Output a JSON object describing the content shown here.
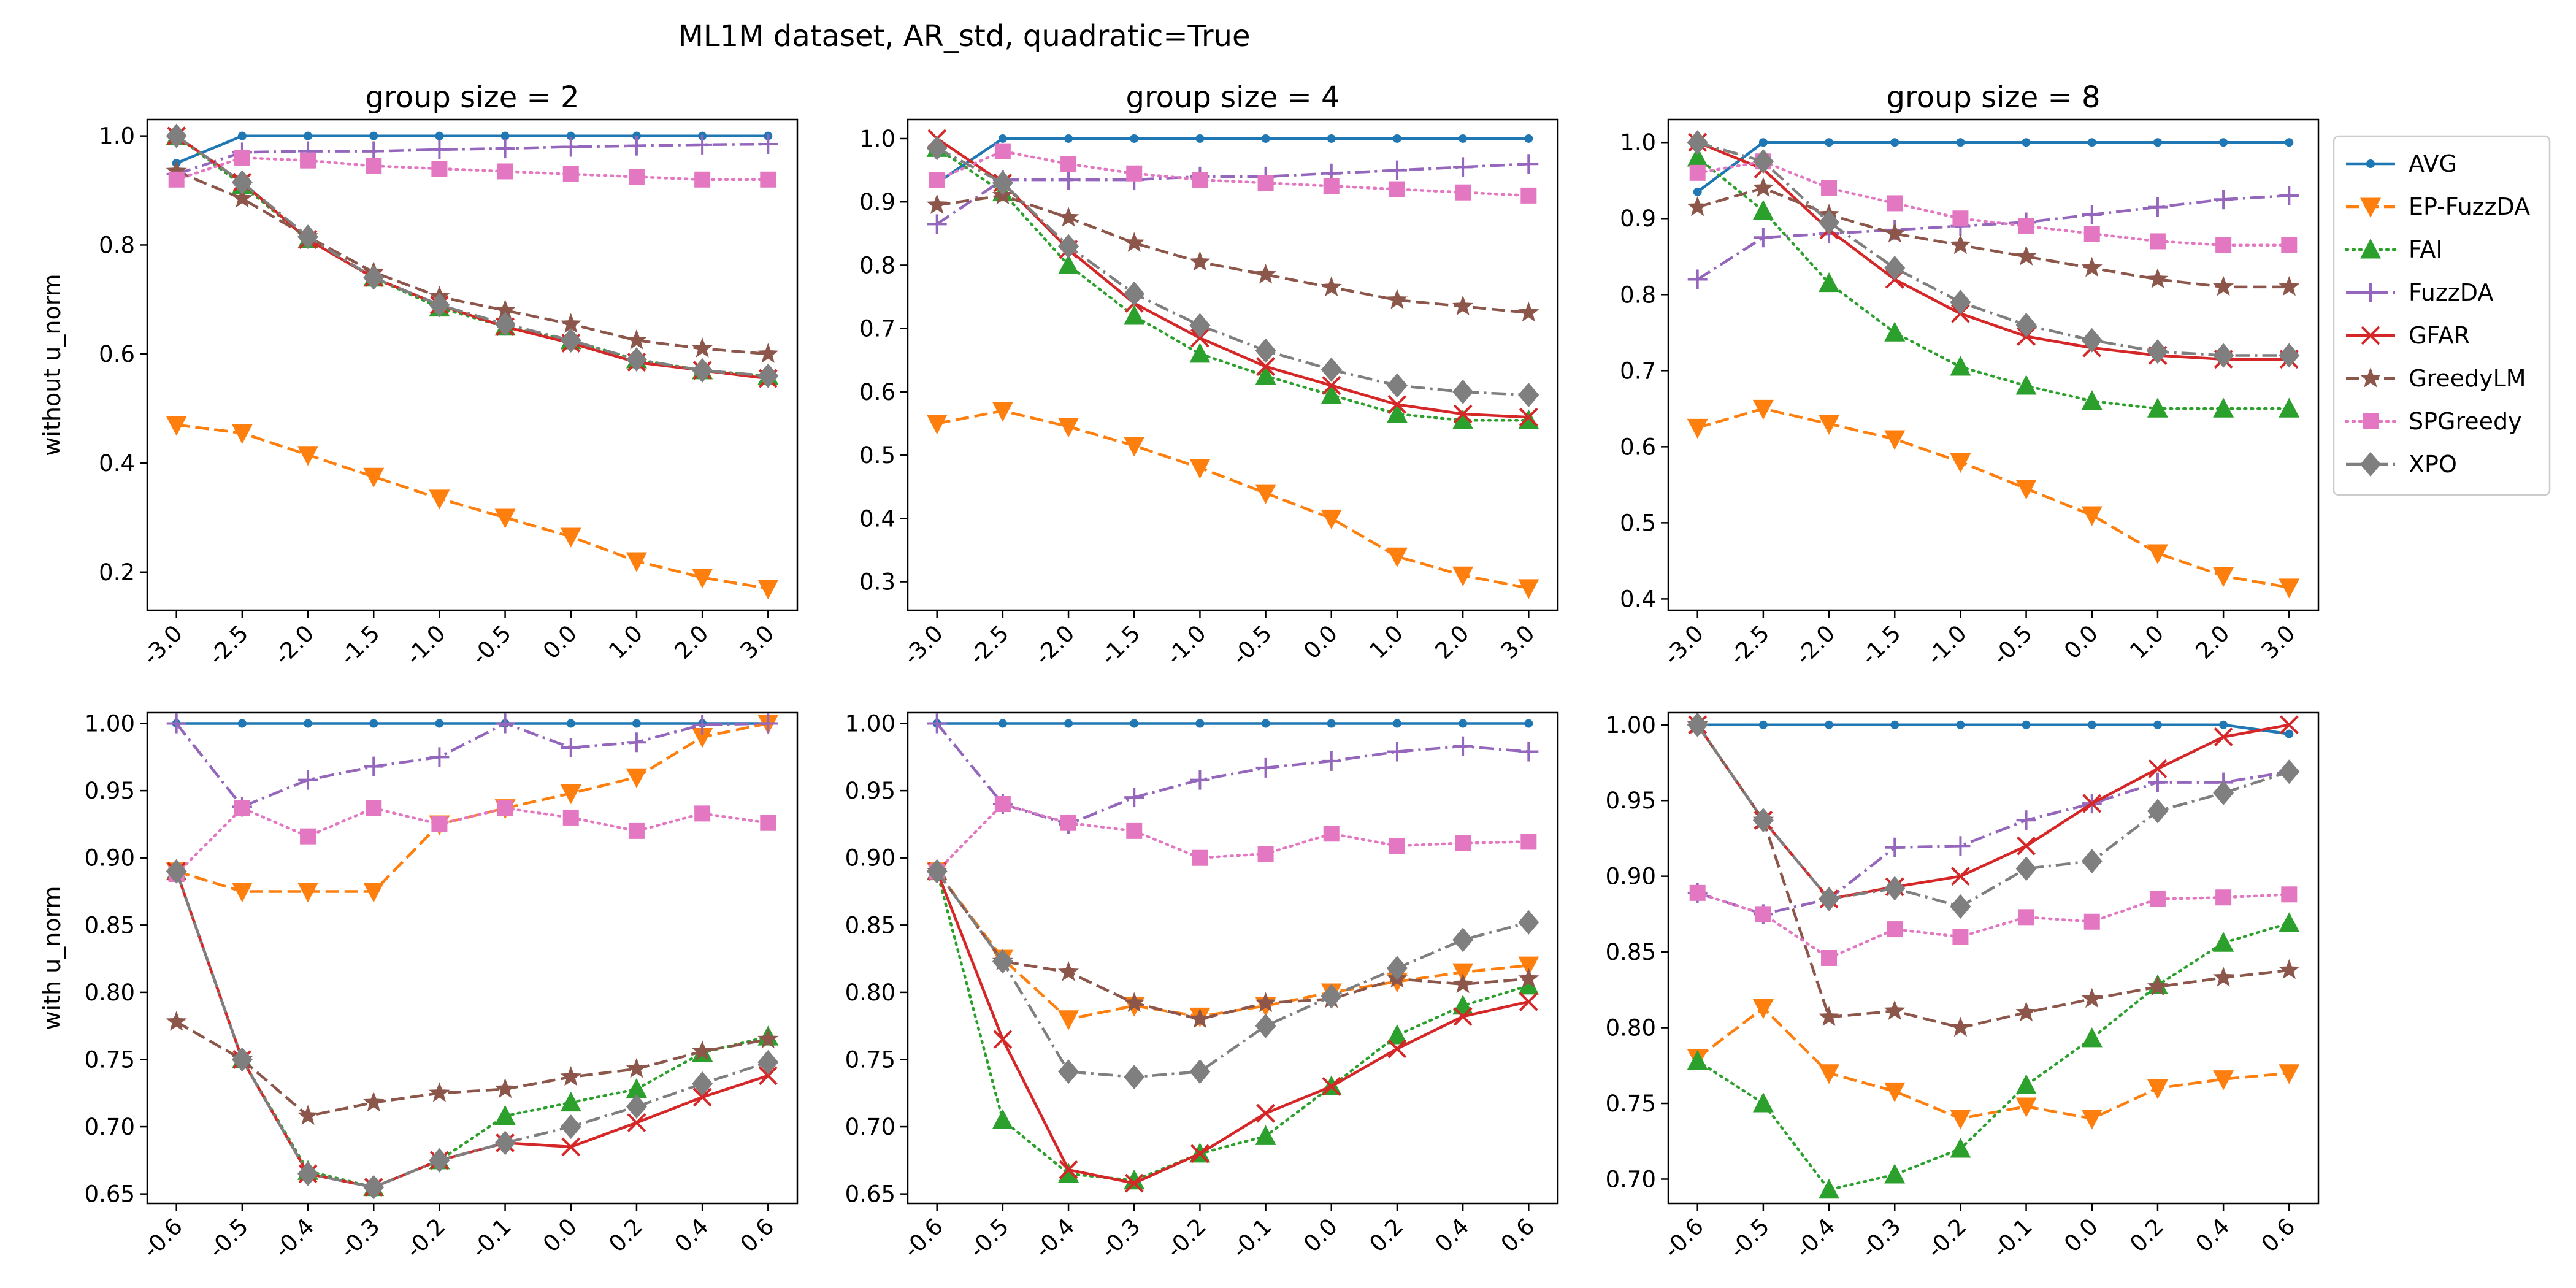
{
  "figure": {
    "suptitle": "ML1M dataset, AR_std, quadratic=True"
  },
  "styles": {
    "AVG": {
      "color": "#1f77b4",
      "dash": "",
      "marker": "point",
      "ms": 7
    },
    "EP-FuzzDA": {
      "color": "#ff7f0e",
      "dash": "22,9",
      "marker": "tri-down",
      "ms": 17
    },
    "FAI": {
      "color": "#2ca02c",
      "dash": "3,8",
      "marker": "tri-up",
      "ms": 17
    },
    "FuzzDA": {
      "color": "#9467bd",
      "dash": "24,8,4,8",
      "marker": "plus",
      "ms": 16
    },
    "GFAR": {
      "color": "#d62728",
      "dash": "",
      "marker": "x",
      "ms": 14
    },
    "GreedyLM": {
      "color": "#8c564b",
      "dash": "22,9",
      "marker": "star",
      "ms": 18
    },
    "SPGreedy": {
      "color": "#e377c2",
      "dash": "3,8",
      "marker": "square",
      "ms": 13
    },
    "XPO": {
      "color": "#7f7f7f",
      "dash": "24,8,4,8",
      "marker": "diamond",
      "ms": 20
    }
  },
  "legend": {
    "placement": "right-outside-top",
    "items": [
      {
        "name": "AVG"
      },
      {
        "name": "EP-FuzzDA"
      },
      {
        "name": "FAI"
      },
      {
        "name": "FuzzDA"
      },
      {
        "name": "GFAR"
      },
      {
        "name": "GreedyLM"
      },
      {
        "name": "SPGreedy"
      },
      {
        "name": "XPO"
      }
    ]
  },
  "chart_data": [
    {
      "type": "line",
      "title": "group size = 2",
      "ylabel": "without u_norm",
      "x": [
        "-3.0",
        "-2.5",
        "-2.0",
        "-1.5",
        "-1.0",
        "-0.5",
        "0.0",
        "1.0",
        "2.0",
        "3.0"
      ],
      "ylim": [
        0.13,
        1.03
      ],
      "yticks": [
        "0.2",
        "0.4",
        "0.6",
        "0.8",
        "1.0"
      ],
      "series": [
        {
          "name": "AVG",
          "values": [
            0.95,
            1.0,
            1.0,
            1.0,
            1.0,
            1.0,
            1.0,
            1.0,
            1.0,
            1.0
          ]
        },
        {
          "name": "EP-FuzzDA",
          "values": [
            0.47,
            0.455,
            0.415,
            0.375,
            0.335,
            0.3,
            0.265,
            0.22,
            0.19,
            0.17
          ]
        },
        {
          "name": "FAI",
          "values": [
            1.0,
            0.91,
            0.81,
            0.74,
            0.685,
            0.65,
            0.625,
            0.59,
            0.57,
            0.56
          ]
        },
        {
          "name": "FuzzDA",
          "values": [
            0.93,
            0.97,
            0.972,
            0.972,
            0.975,
            0.977,
            0.98,
            0.982,
            0.984,
            0.985
          ]
        },
        {
          "name": "GFAR",
          "values": [
            1.0,
            0.915,
            0.81,
            0.74,
            0.69,
            0.65,
            0.62,
            0.585,
            0.57,
            0.555
          ]
        },
        {
          "name": "GreedyLM",
          "values": [
            0.935,
            0.885,
            0.815,
            0.75,
            0.705,
            0.68,
            0.655,
            0.625,
            0.61,
            0.6
          ]
        },
        {
          "name": "SPGreedy",
          "values": [
            0.92,
            0.96,
            0.955,
            0.945,
            0.94,
            0.935,
            0.93,
            0.925,
            0.92,
            0.92
          ]
        },
        {
          "name": "XPO",
          "values": [
            1.0,
            0.915,
            0.815,
            0.74,
            0.69,
            0.655,
            0.625,
            0.59,
            0.57,
            0.56
          ]
        }
      ]
    },
    {
      "type": "line",
      "title": "group size = 4",
      "ylabel": "",
      "x": [
        "-3.0",
        "-2.5",
        "-2.0",
        "-1.5",
        "-1.0",
        "-0.5",
        "0.0",
        "1.0",
        "2.0",
        "3.0"
      ],
      "ylim": [
        0.255,
        1.03
      ],
      "yticks": [
        "0.3",
        "0.4",
        "0.5",
        "0.6",
        "0.7",
        "0.8",
        "0.9",
        "1.0"
      ],
      "series": [
        {
          "name": "AVG",
          "values": [
            0.93,
            1.0,
            1.0,
            1.0,
            1.0,
            1.0,
            1.0,
            1.0,
            1.0,
            1.0
          ]
        },
        {
          "name": "EP-FuzzDA",
          "values": [
            0.55,
            0.57,
            0.545,
            0.515,
            0.48,
            0.44,
            0.4,
            0.34,
            0.31,
            0.29
          ]
        },
        {
          "name": "FAI",
          "values": [
            0.985,
            0.915,
            0.8,
            0.72,
            0.66,
            0.625,
            0.595,
            0.565,
            0.555,
            0.555
          ]
        },
        {
          "name": "FuzzDA",
          "values": [
            0.865,
            0.935,
            0.935,
            0.935,
            0.94,
            0.94,
            0.945,
            0.95,
            0.955,
            0.96
          ]
        },
        {
          "name": "GFAR",
          "values": [
            1.0,
            0.93,
            0.825,
            0.74,
            0.685,
            0.64,
            0.61,
            0.58,
            0.565,
            0.56
          ]
        },
        {
          "name": "GreedyLM",
          "values": [
            0.895,
            0.91,
            0.875,
            0.835,
            0.805,
            0.785,
            0.765,
            0.745,
            0.735,
            0.725
          ]
        },
        {
          "name": "SPGreedy",
          "values": [
            0.935,
            0.98,
            0.96,
            0.945,
            0.935,
            0.93,
            0.925,
            0.92,
            0.915,
            0.91
          ]
        },
        {
          "name": "XPO",
          "values": [
            0.985,
            0.93,
            0.83,
            0.755,
            0.705,
            0.665,
            0.635,
            0.61,
            0.6,
            0.595
          ]
        }
      ]
    },
    {
      "type": "line",
      "title": "group size = 8",
      "ylabel": "",
      "x": [
        "-3.0",
        "-2.5",
        "-2.0",
        "-1.5",
        "-1.0",
        "-0.5",
        "0.0",
        "1.0",
        "2.0",
        "3.0"
      ],
      "ylim": [
        0.385,
        1.03
      ],
      "yticks": [
        "0.4",
        "0.5",
        "0.6",
        "0.7",
        "0.8",
        "0.9",
        "1.0"
      ],
      "series": [
        {
          "name": "AVG",
          "values": [
            0.935,
            1.0,
            1.0,
            1.0,
            1.0,
            1.0,
            1.0,
            1.0,
            1.0,
            1.0
          ]
        },
        {
          "name": "EP-FuzzDA",
          "values": [
            0.625,
            0.65,
            0.63,
            0.61,
            0.58,
            0.545,
            0.51,
            0.46,
            0.43,
            0.415
          ]
        },
        {
          "name": "FAI",
          "values": [
            0.98,
            0.91,
            0.815,
            0.75,
            0.705,
            0.68,
            0.66,
            0.65,
            0.65,
            0.65
          ]
        },
        {
          "name": "FuzzDA",
          "values": [
            0.82,
            0.875,
            0.88,
            0.885,
            0.89,
            0.895,
            0.905,
            0.915,
            0.925,
            0.93
          ]
        },
        {
          "name": "GFAR",
          "values": [
            1.0,
            0.965,
            0.885,
            0.82,
            0.775,
            0.745,
            0.73,
            0.72,
            0.715,
            0.715
          ]
        },
        {
          "name": "GreedyLM",
          "values": [
            0.915,
            0.94,
            0.905,
            0.88,
            0.865,
            0.85,
            0.835,
            0.82,
            0.81,
            0.81
          ]
        },
        {
          "name": "SPGreedy",
          "values": [
            0.96,
            0.975,
            0.94,
            0.92,
            0.9,
            0.89,
            0.88,
            0.87,
            0.865,
            0.865
          ]
        },
        {
          "name": "XPO",
          "values": [
            1.0,
            0.975,
            0.895,
            0.835,
            0.79,
            0.76,
            0.74,
            0.725,
            0.72,
            0.72
          ]
        }
      ]
    },
    {
      "type": "line",
      "title": "",
      "ylabel": "with u_norm",
      "x": [
        "-0.6",
        "-0.5",
        "-0.4",
        "-0.3",
        "-0.2",
        "-0.1",
        "0.0",
        "0.2",
        "0.4",
        "0.6"
      ],
      "ylim": [
        0.643,
        1.008
      ],
      "yticks": [
        "0.65",
        "0.70",
        "0.75",
        "0.80",
        "0.85",
        "0.90",
        "0.95",
        "1.00"
      ],
      "series": [
        {
          "name": "AVG",
          "values": [
            1.0,
            1.0,
            1.0,
            1.0,
            1.0,
            1.0,
            1.0,
            1.0,
            1.0,
            1.0
          ]
        },
        {
          "name": "EP-FuzzDA",
          "values": [
            0.89,
            0.875,
            0.875,
            0.875,
            0.925,
            0.937,
            0.948,
            0.96,
            0.99,
            1.0
          ]
        },
        {
          "name": "FAI",
          "values": [
            0.89,
            0.75,
            0.667,
            0.655,
            0.675,
            0.708,
            0.718,
            0.728,
            0.755,
            0.767
          ]
        },
        {
          "name": "FuzzDA",
          "values": [
            1.0,
            0.938,
            0.958,
            0.968,
            0.975,
            1.0,
            0.982,
            0.986,
            0.999,
            1.0
          ]
        },
        {
          "name": "GFAR",
          "values": [
            0.89,
            0.75,
            0.665,
            0.655,
            0.675,
            0.688,
            0.685,
            0.703,
            0.722,
            0.738
          ]
        },
        {
          "name": "GreedyLM",
          "values": [
            0.778,
            0.75,
            0.708,
            0.718,
            0.725,
            0.728,
            0.737,
            0.743,
            0.756,
            0.765
          ]
        },
        {
          "name": "SPGreedy",
          "values": [
            0.888,
            0.937,
            0.916,
            0.937,
            0.925,
            0.937,
            0.93,
            0.92,
            0.933,
            0.926
          ]
        },
        {
          "name": "XPO",
          "values": [
            0.89,
            0.75,
            0.665,
            0.655,
            0.675,
            0.688,
            0.7,
            0.715,
            0.732,
            0.748
          ]
        }
      ]
    },
    {
      "type": "line",
      "title": "",
      "ylabel": "",
      "x": [
        "-0.6",
        "-0.5",
        "-0.4",
        "-0.3",
        "-0.2",
        "-0.1",
        "0.0",
        "0.2",
        "0.4",
        "0.6"
      ],
      "ylim": [
        0.643,
        1.008
      ],
      "yticks": [
        "0.65",
        "0.70",
        "0.75",
        "0.80",
        "0.85",
        "0.90",
        "0.95",
        "1.00"
      ],
      "series": [
        {
          "name": "AVG",
          "values": [
            1.0,
            1.0,
            1.0,
            1.0,
            1.0,
            1.0,
            1.0,
            1.0,
            1.0,
            1.0
          ]
        },
        {
          "name": "EP-FuzzDA",
          "values": [
            0.89,
            0.825,
            0.78,
            0.79,
            0.782,
            0.79,
            0.8,
            0.808,
            0.815,
            0.82
          ]
        },
        {
          "name": "FAI",
          "values": [
            0.89,
            0.705,
            0.665,
            0.66,
            0.68,
            0.693,
            0.73,
            0.768,
            0.79,
            0.805
          ]
        },
        {
          "name": "FuzzDA",
          "values": [
            1.0,
            0.94,
            0.925,
            0.945,
            0.958,
            0.967,
            0.972,
            0.979,
            0.983,
            0.979
          ]
        },
        {
          "name": "GFAR",
          "values": [
            0.89,
            0.765,
            0.668,
            0.658,
            0.68,
            0.71,
            0.73,
            0.758,
            0.782,
            0.793
          ]
        },
        {
          "name": "GreedyLM",
          "values": [
            0.89,
            0.823,
            0.815,
            0.792,
            0.78,
            0.792,
            0.795,
            0.81,
            0.806,
            0.81
          ]
        },
        {
          "name": "SPGreedy",
          "values": [
            0.89,
            0.94,
            0.926,
            0.92,
            0.9,
            0.903,
            0.918,
            0.909,
            0.911,
            0.912
          ]
        },
        {
          "name": "XPO",
          "values": [
            0.89,
            0.823,
            0.741,
            0.737,
            0.741,
            0.775,
            0.797,
            0.818,
            0.839,
            0.852
          ]
        }
      ]
    },
    {
      "type": "line",
      "title": "",
      "ylabel": "",
      "x": [
        "-0.6",
        "-0.5",
        "-0.4",
        "-0.3",
        "-0.2",
        "-0.1",
        "0.0",
        "0.2",
        "0.4",
        "0.6"
      ],
      "ylim": [
        0.684,
        1.008
      ],
      "yticks": [
        "0.70",
        "0.75",
        "0.80",
        "0.85",
        "0.90",
        "0.95",
        "1.00"
      ],
      "series": [
        {
          "name": "AVG",
          "values": [
            1.0,
            1.0,
            1.0,
            1.0,
            1.0,
            1.0,
            1.0,
            1.0,
            1.0,
            0.994
          ]
        },
        {
          "name": "EP-FuzzDA",
          "values": [
            0.78,
            0.813,
            0.77,
            0.758,
            0.74,
            0.748,
            0.74,
            0.76,
            0.766,
            0.77
          ]
        },
        {
          "name": "FAI",
          "values": [
            0.778,
            0.75,
            0.693,
            0.703,
            0.72,
            0.762,
            0.793,
            0.828,
            0.856,
            0.869
          ]
        },
        {
          "name": "FuzzDA",
          "values": [
            0.889,
            0.875,
            0.885,
            0.919,
            0.92,
            0.937,
            0.948,
            0.962,
            0.962,
            0.969
          ]
        },
        {
          "name": "GFAR",
          "values": [
            1.0,
            0.937,
            0.885,
            0.893,
            0.9,
            0.92,
            0.948,
            0.971,
            0.992,
            1.0
          ]
        },
        {
          "name": "GreedyLM",
          "values": [
            1.0,
            0.937,
            0.807,
            0.811,
            0.8,
            0.81,
            0.819,
            0.827,
            0.833,
            0.838
          ]
        },
        {
          "name": "SPGreedy",
          "values": [
            0.889,
            0.875,
            0.846,
            0.865,
            0.86,
            0.873,
            0.87,
            0.885,
            0.886,
            0.888
          ]
        },
        {
          "name": "XPO",
          "values": [
            1.0,
            0.937,
            0.885,
            0.892,
            0.88,
            0.905,
            0.91,
            0.943,
            0.955,
            0.969
          ]
        }
      ]
    }
  ]
}
